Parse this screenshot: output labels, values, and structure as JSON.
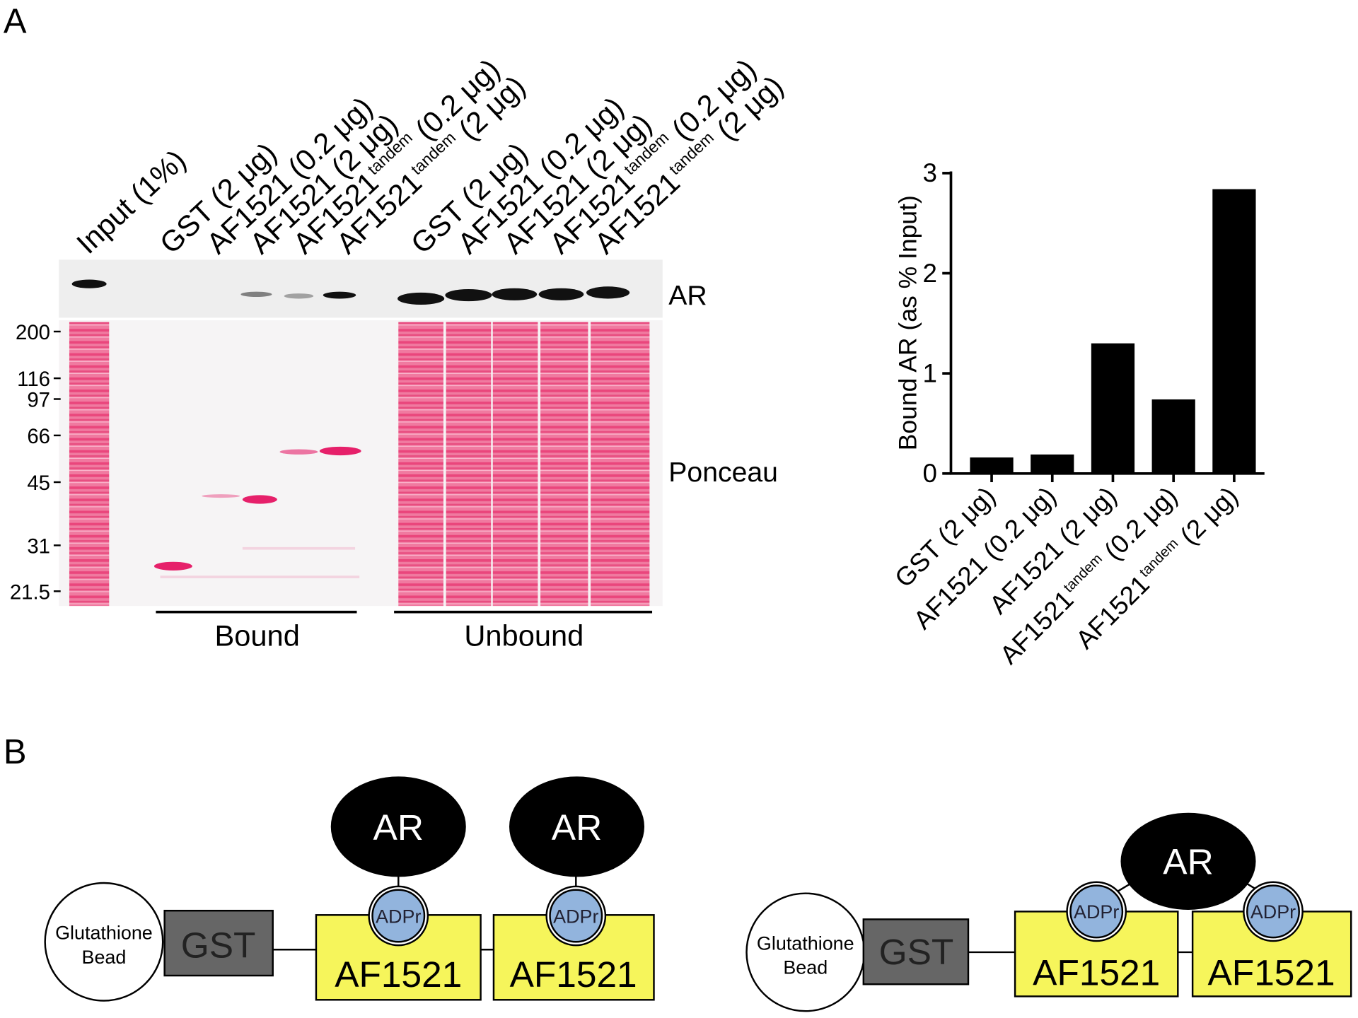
{
  "panels": {
    "a": "A",
    "b": "B"
  },
  "gel": {
    "lanes": [
      {
        "name": "Input",
        "dose": "(1%)"
      },
      {
        "name": "GST",
        "dose": "(2 μg)"
      },
      {
        "name": "AF1521",
        "dose": "(0.2 μg)"
      },
      {
        "name": "AF1521",
        "dose": "(2 μg)"
      },
      {
        "name": "AF1521",
        "sup": "tandem",
        "dose": "(0.2 μg)"
      },
      {
        "name": "AF1521",
        "sup": "tandem",
        "dose": "(2 μg)"
      },
      {
        "name": "GST",
        "dose": "(2 μg)"
      },
      {
        "name": "AF1521",
        "dose": "(0.2 μg)"
      },
      {
        "name": "AF1521",
        "dose": "(2 μg)"
      },
      {
        "name": "AF1521",
        "sup": "tandem",
        "dose": "(0.2 μg)"
      },
      {
        "name": "AF1521",
        "sup": "tandem",
        "dose": "(2 μg)"
      }
    ],
    "blot_labels": [
      "AR",
      "Ponceau"
    ],
    "mw_markers": [
      200,
      116,
      97,
      66,
      45,
      31,
      21.5
    ],
    "groups": [
      "Bound",
      "Unbound"
    ]
  },
  "chart_data": {
    "type": "bar",
    "y_label": "Bound AR (as % Input)",
    "categories": [
      {
        "name": "GST",
        "dose": "(2 μg)"
      },
      {
        "name": "AF1521",
        "dose": "(0.2 μg)"
      },
      {
        "name": "AF1521",
        "dose": "(2 μg)"
      },
      {
        "name": "AF1521",
        "sup": "tandem",
        "dose": "(0.2 μg)"
      },
      {
        "name": "AF1521",
        "sup": "tandem",
        "dose": "(2 μg)"
      }
    ],
    "values": [
      0.16,
      0.19,
      1.3,
      0.74,
      2.84
    ],
    "color": "#000000",
    "ylim": [
      0,
      3
    ],
    "yticks": [
      0,
      1,
      2,
      3
    ]
  },
  "diagram": {
    "constructs": [
      {
        "bead": [
          "Glutathione",
          "Bead"
        ],
        "tag": "GST",
        "domains": [
          "AF1521",
          "AF1521"
        ],
        "ligands": [
          "ADPr",
          "ADPr"
        ],
        "targets": [
          "AR",
          "AR"
        ]
      },
      {
        "bead": [
          "Glutathione",
          "Bead"
        ],
        "tag": "GST",
        "domains": [
          "AF1521",
          "AF1521"
        ],
        "ligands": [
          "ADPr",
          "ADPr"
        ],
        "targets": [
          "AR"
        ]
      }
    ]
  }
}
